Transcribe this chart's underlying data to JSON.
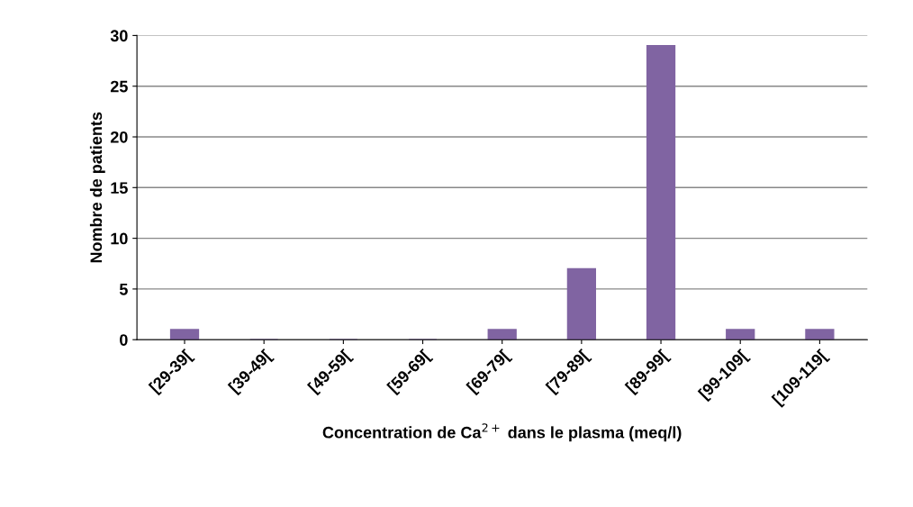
{
  "chart_data": {
    "type": "bar",
    "xlabel": "Concentration de Ca$^{2+}$ dans le plasma (meq/l)",
    "ylabel": "Nombre de patients",
    "categories": [
      "[29-39[",
      "[39-49[",
      "[49-59[",
      "[59-69[",
      "[69-79[",
      "[79-89[",
      "[89-99[",
      "[99-109[",
      "[109-119["
    ],
    "values": [
      1,
      0,
      0,
      0,
      1,
      7,
      29,
      1,
      1
    ],
    "color": "#8064a2",
    "ylim": [
      0,
      30
    ],
    "yticks": [
      0,
      5,
      10,
      15,
      20,
      25,
      30
    ],
    "grid": "y"
  }
}
